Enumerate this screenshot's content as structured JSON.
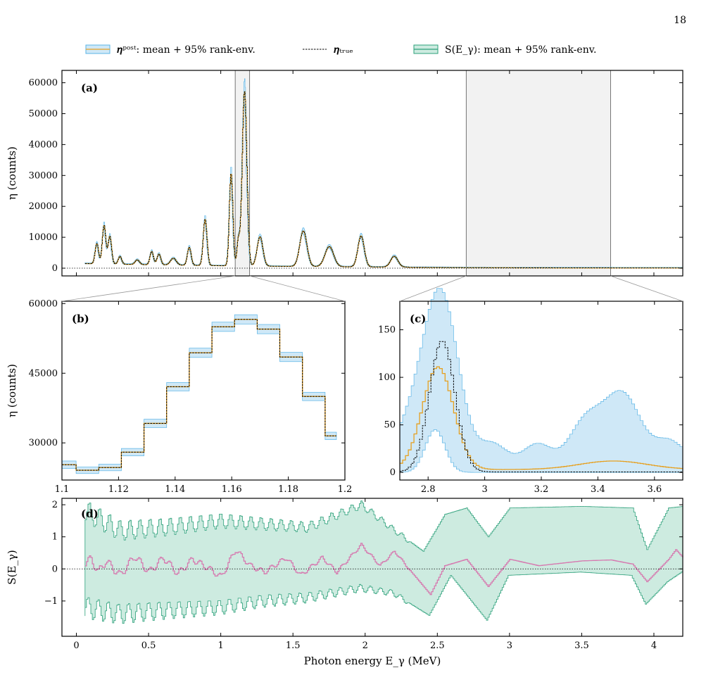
{
  "page_number": "18",
  "legend": [
    {
      "label": "𝜼ᵖᵒˢᵗ: mean + 95% rank-env.",
      "kind": "band",
      "fill": "#cfe8f7",
      "edge": "#5ab4e6",
      "line": "#e6a020"
    },
    {
      "label": "𝜼ₜᵣᵤₑ",
      "kind": "dashed",
      "line": "#000000"
    },
    {
      "label": "S(E_γ): mean + 95% rank-env.",
      "kind": "band",
      "fill": "#cdebe0",
      "edge": "#2ca07a",
      "line": "#2ca07a"
    }
  ],
  "colors": {
    "post_fill": "#cfe8f7",
    "post_edge": "#5ab4e6",
    "post_mean": "#e6a020",
    "true": "#000000",
    "s_fill": "#cdebe0",
    "s_edge": "#2ca07a",
    "s_mean": "#d67bb0",
    "highlight": "#f2f2f2"
  },
  "chart_data": [
    {
      "panel": "(a)",
      "type": "line",
      "ylabel": "η (counts)",
      "xlim": [
        -0.1,
        4.2
      ],
      "ylim": [
        -2500,
        64000
      ],
      "yticks": [
        "0",
        "10000",
        "20000",
        "30000",
        "40000",
        "50000",
        "60000"
      ],
      "ytick_values": [
        0,
        10000,
        20000,
        30000,
        40000,
        50000,
        60000
      ],
      "highlight_regions": [
        [
          1.1,
          1.2
        ],
        [
          2.7,
          3.7
        ]
      ],
      "peaks": [
        {
          "x": 0.14,
          "y": 6500,
          "w": 0.012
        },
        {
          "x": 0.19,
          "y": 12500,
          "w": 0.012
        },
        {
          "x": 0.23,
          "y": 9000,
          "w": 0.012
        },
        {
          "x": 0.3,
          "y": 2500,
          "w": 0.012
        },
        {
          "x": 0.42,
          "y": 1500,
          "w": 0.015
        },
        {
          "x": 0.52,
          "y": 4300,
          "w": 0.012
        },
        {
          "x": 0.57,
          "y": 3500,
          "w": 0.013
        },
        {
          "x": 0.67,
          "y": 2200,
          "w": 0.02
        },
        {
          "x": 0.78,
          "y": 5800,
          "w": 0.013
        },
        {
          "x": 0.89,
          "y": 15000,
          "w": 0.013
        },
        {
          "x": 1.07,
          "y": 30000,
          "w": 0.012
        },
        {
          "x": 1.163,
          "y": 56500,
          "w": 0.016
        },
        {
          "x": 1.12,
          "y": 8000,
          "w": 0.01
        },
        {
          "x": 1.27,
          "y": 9500,
          "w": 0.02
        },
        {
          "x": 1.57,
          "y": 11500,
          "w": 0.025
        },
        {
          "x": 1.75,
          "y": 6500,
          "w": 0.03
        },
        {
          "x": 1.97,
          "y": 10000,
          "w": 0.022
        },
        {
          "x": 2.2,
          "y": 3500,
          "w": 0.025
        }
      ],
      "baseline": 1500
    },
    {
      "panel": "(b)",
      "type": "line",
      "ylabel": "η (counts)",
      "xlim": [
        1.1,
        1.2
      ],
      "ylim": [
        22000,
        60500
      ],
      "xticks": [
        "1.1",
        "1.12",
        "1.14",
        "1.16",
        "1.18",
        "1.2"
      ],
      "xtick_values": [
        1.1,
        1.12,
        1.14,
        1.16,
        1.18,
        1.2
      ],
      "yticks": [
        "30000",
        "45000",
        "60000"
      ],
      "ytick_values": [
        30000,
        45000,
        60000
      ],
      "bin_edges": [
        1.1,
        1.105,
        1.113,
        1.121,
        1.129,
        1.137,
        1.145,
        1.153,
        1.161,
        1.169,
        1.177,
        1.185,
        1.193,
        1.197
      ],
      "true_values": [
        25300,
        24100,
        24700,
        28000,
        34200,
        42100,
        49400,
        55000,
        56600,
        54500,
        48500,
        40000,
        31500
      ],
      "band_halfwidth": [
        800,
        700,
        700,
        800,
        900,
        900,
        1000,
        1000,
        1000,
        1000,
        1000,
        900,
        800
      ]
    },
    {
      "panel": "(c)",
      "type": "line",
      "xlim": [
        2.7,
        3.7
      ],
      "ylim": [
        -8,
        180
      ],
      "xticks": [
        "2.8",
        "3",
        "3.2",
        "3.4",
        "3.6"
      ],
      "xtick_values": [
        2.8,
        3.0,
        3.2,
        3.4,
        3.6
      ],
      "yticks": [
        "0",
        "50",
        "100",
        "150"
      ],
      "ytick_values": [
        0,
        50,
        100,
        150
      ],
      "true_peak": {
        "x": 2.845,
        "y": 138,
        "w": 0.045
      },
      "mean_peak": {
        "x": 2.83,
        "y": 108,
        "w": 0.055
      },
      "upper_peak": {
        "x": 2.83,
        "y": 168,
        "w": 0.065
      },
      "lower_peak": {
        "x": 2.83,
        "y": 45,
        "w": 0.035
      },
      "upper_bump": {
        "x": 3.45,
        "y": 60,
        "w": 0.09
      },
      "mean_bump": {
        "x": 3.45,
        "y": 9,
        "w": 0.12
      }
    },
    {
      "panel": "(d)",
      "type": "line",
      "ylabel": "S(E_γ)",
      "xlabel": "Photon energy E_γ (MeV)",
      "xlim": [
        -0.1,
        4.2
      ],
      "ylim": [
        -2.1,
        2.2
      ],
      "xticks": [
        "0",
        "0.5",
        "1",
        "1.5",
        "2",
        "2.5",
        "3",
        "3.5",
        "4"
      ],
      "xtick_values": [
        0,
        0.5,
        1,
        1.5,
        2,
        2.5,
        3,
        3.5,
        4
      ],
      "yticks": [
        "−1",
        "0",
        "1",
        "2"
      ],
      "ytick_values": [
        -1,
        0,
        1,
        2
      ],
      "mean_points": [
        [
          0.06,
          0.2
        ],
        [
          0.1,
          0.3
        ],
        [
          0.15,
          -0.1
        ],
        [
          0.2,
          0.25
        ],
        [
          0.3,
          -0.2
        ],
        [
          0.4,
          0.4
        ],
        [
          0.5,
          -0.1
        ],
        [
          0.6,
          0.35
        ],
        [
          0.7,
          -0.15
        ],
        [
          0.8,
          0.3
        ],
        [
          0.9,
          0.05
        ],
        [
          1.0,
          -0.25
        ],
        [
          1.1,
          0.6
        ],
        [
          1.2,
          0.1
        ],
        [
          1.3,
          -0.1
        ],
        [
          1.45,
          0.35
        ],
        [
          1.55,
          -0.2
        ],
        [
          1.7,
          0.35
        ],
        [
          1.8,
          -0.1
        ],
        [
          1.97,
          0.75
        ],
        [
          2.1,
          0.1
        ],
        [
          2.2,
          0.55
        ],
        [
          2.3,
          0.0
        ],
        [
          2.45,
          -0.8
        ],
        [
          2.55,
          0.1
        ],
        [
          2.7,
          0.3
        ],
        [
          2.85,
          -0.55
        ],
        [
          3.0,
          0.3
        ],
        [
          3.2,
          0.1
        ],
        [
          3.5,
          0.25
        ],
        [
          3.7,
          0.28
        ],
        [
          3.85,
          0.15
        ],
        [
          3.95,
          -0.4
        ],
        [
          4.1,
          0.3
        ],
        [
          4.15,
          0.6
        ],
        [
          4.2,
          0.35
        ]
      ],
      "upper_points": [
        [
          0.06,
          1.8
        ],
        [
          0.3,
          1.2
        ],
        [
          0.6,
          1.3
        ],
        [
          1.0,
          1.5
        ],
        [
          1.3,
          1.4
        ],
        [
          1.6,
          1.3
        ],
        [
          1.97,
          2.0
        ],
        [
          2.2,
          1.2
        ],
        [
          2.4,
          0.55
        ],
        [
          2.55,
          1.7
        ],
        [
          2.7,
          1.9
        ],
        [
          2.85,
          1.0
        ],
        [
          3.0,
          1.9
        ],
        [
          3.5,
          1.95
        ],
        [
          3.85,
          1.9
        ],
        [
          3.95,
          0.6
        ],
        [
          4.1,
          1.9
        ],
        [
          4.2,
          1.95
        ]
      ],
      "lower_points": [
        [
          0.06,
          -1.2
        ],
        [
          0.3,
          -1.4
        ],
        [
          0.6,
          -1.3
        ],
        [
          1.0,
          -1.2
        ],
        [
          1.3,
          -1.0
        ],
        [
          1.6,
          -0.9
        ],
        [
          1.97,
          -0.6
        ],
        [
          2.2,
          -0.75
        ],
        [
          2.45,
          -1.45
        ],
        [
          2.6,
          -0.2
        ],
        [
          2.85,
          -1.6
        ],
        [
          3.0,
          -0.2
        ],
        [
          3.5,
          -0.1
        ],
        [
          3.85,
          -0.2
        ],
        [
          3.95,
          -1.1
        ],
        [
          4.1,
          -0.4
        ],
        [
          4.2,
          -0.1
        ]
      ]
    }
  ]
}
